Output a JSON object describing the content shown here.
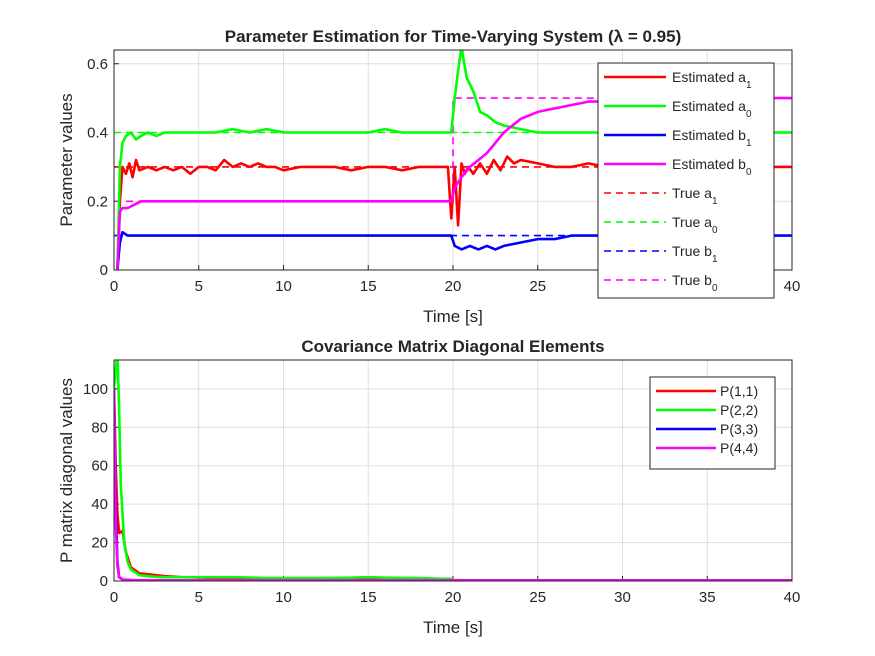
{
  "chart_data": [
    {
      "type": "line",
      "title": "Parameter Estimation for Time-Varying System (λ = 0.95)",
      "xlabel": "Time [s]",
      "ylabel": "Parameter values",
      "xlim": [
        0,
        40
      ],
      "ylim": [
        0,
        0.64
      ],
      "xticks": [
        "0",
        "5",
        "10",
        "15",
        "20",
        "25",
        "30",
        "35",
        "40"
      ],
      "yticks": [
        "0",
        "0.2",
        "0.4",
        "0.6"
      ],
      "grid": true,
      "legend": "top-right",
      "series": [
        {
          "name": "Estimated a",
          "sub": "1",
          "color": "#ff0000",
          "style": "solid",
          "x": [
            0.2,
            0.35,
            0.5,
            0.7,
            0.9,
            1.1,
            1.3,
            1.5,
            2,
            2.5,
            3,
            3.5,
            4,
            4.5,
            5,
            5.5,
            6,
            6.5,
            7,
            7.5,
            8,
            8.5,
            9,
            9.5,
            10,
            11,
            12,
            13,
            14,
            15,
            16,
            17,
            18,
            19,
            19.7,
            19.9,
            20.1,
            20.3,
            20.5,
            20.7,
            20.9,
            21.2,
            21.6,
            22,
            22.4,
            22.8,
            23.2,
            23.6,
            24,
            25,
            26,
            27,
            28,
            29,
            30,
            31,
            32,
            33,
            34,
            35,
            36,
            37,
            38,
            39,
            40
          ],
          "y": [
            0,
            0.2,
            0.3,
            0.28,
            0.31,
            0.27,
            0.32,
            0.29,
            0.3,
            0.29,
            0.3,
            0.29,
            0.3,
            0.28,
            0.3,
            0.3,
            0.29,
            0.32,
            0.3,
            0.31,
            0.3,
            0.31,
            0.3,
            0.3,
            0.29,
            0.3,
            0.3,
            0.3,
            0.29,
            0.3,
            0.3,
            0.29,
            0.3,
            0.3,
            0.3,
            0.15,
            0.3,
            0.13,
            0.31,
            0.28,
            0.3,
            0.28,
            0.31,
            0.28,
            0.32,
            0.29,
            0.33,
            0.31,
            0.32,
            0.31,
            0.3,
            0.3,
            0.31,
            0.3,
            0.3,
            0.3,
            0.3,
            0.3,
            0.3,
            0.3,
            0.3,
            0.3,
            0.3,
            0.3,
            0.3
          ]
        },
        {
          "name": "Estimated a",
          "sub": "0",
          "color": "#00ff00",
          "style": "solid",
          "x": [
            0.2,
            0.35,
            0.5,
            0.7,
            1,
            1.3,
            1.6,
            2,
            2.5,
            3,
            4,
            5,
            6,
            7,
            8,
            9,
            10,
            11,
            12,
            13,
            14,
            15,
            16,
            17,
            18,
            19,
            19.9,
            20.1,
            20.3,
            20.5,
            20.8,
            21.2,
            21.6,
            22,
            22.5,
            23,
            24,
            25,
            26,
            27,
            28,
            29,
            30,
            31,
            32,
            33,
            34,
            35,
            36,
            37,
            38,
            39,
            40
          ],
          "y": [
            0,
            0.3,
            0.37,
            0.39,
            0.4,
            0.38,
            0.39,
            0.4,
            0.39,
            0.4,
            0.4,
            0.4,
            0.4,
            0.41,
            0.4,
            0.41,
            0.4,
            0.4,
            0.4,
            0.4,
            0.4,
            0.4,
            0.41,
            0.4,
            0.4,
            0.4,
            0.4,
            0.5,
            0.58,
            0.65,
            0.56,
            0.52,
            0.46,
            0.45,
            0.43,
            0.42,
            0.41,
            0.4,
            0.4,
            0.4,
            0.4,
            0.4,
            0.4,
            0.4,
            0.4,
            0.4,
            0.4,
            0.4,
            0.4,
            0.4,
            0.4,
            0.4,
            0.4
          ]
        },
        {
          "name": "Estimated b",
          "sub": "1",
          "color": "#0000ff",
          "style": "solid",
          "x": [
            0.2,
            0.35,
            0.5,
            0.8,
            1,
            2,
            3,
            4,
            5,
            6,
            7,
            8,
            9,
            10,
            11,
            12,
            13,
            14,
            15,
            16,
            17,
            18,
            19,
            19.9,
            20.1,
            20.5,
            21,
            21.5,
            22,
            22.5,
            23,
            24,
            25,
            26,
            27,
            28,
            29,
            30,
            31,
            32,
            33,
            34,
            35,
            36,
            37,
            38,
            39,
            40
          ],
          "y": [
            0,
            0.08,
            0.11,
            0.1,
            0.1,
            0.1,
            0.1,
            0.1,
            0.1,
            0.1,
            0.1,
            0.1,
            0.1,
            0.1,
            0.1,
            0.1,
            0.1,
            0.1,
            0.1,
            0.1,
            0.1,
            0.1,
            0.1,
            0.1,
            0.07,
            0.06,
            0.07,
            0.06,
            0.07,
            0.06,
            0.07,
            0.08,
            0.09,
            0.09,
            0.1,
            0.1,
            0.1,
            0.1,
            0.1,
            0.1,
            0.1,
            0.1,
            0.1,
            0.1,
            0.1,
            0.1,
            0.1,
            0.1
          ]
        },
        {
          "name": "Estimated b",
          "sub": "0",
          "color": "#ff00ff",
          "style": "solid",
          "x": [
            0.2,
            0.35,
            0.5,
            0.8,
            1.2,
            1.6,
            2,
            3,
            4,
            5,
            6,
            7,
            8,
            9,
            10,
            11,
            12,
            13,
            14,
            15,
            16,
            17,
            18,
            19,
            19.9,
            20.1,
            20.5,
            21,
            21.5,
            22,
            22.5,
            23,
            23.5,
            24,
            25,
            26,
            27,
            28,
            29,
            30,
            31,
            32,
            33,
            34,
            35,
            36,
            37,
            38,
            39,
            40
          ],
          "y": [
            0,
            0.17,
            0.18,
            0.18,
            0.19,
            0.2,
            0.2,
            0.2,
            0.2,
            0.2,
            0.2,
            0.2,
            0.2,
            0.2,
            0.2,
            0.2,
            0.2,
            0.2,
            0.2,
            0.2,
            0.2,
            0.2,
            0.2,
            0.2,
            0.2,
            0.24,
            0.27,
            0.3,
            0.32,
            0.34,
            0.37,
            0.4,
            0.42,
            0.44,
            0.46,
            0.47,
            0.48,
            0.49,
            0.49,
            0.5,
            0.5,
            0.5,
            0.5,
            0.5,
            0.5,
            0.5,
            0.5,
            0.5,
            0.5,
            0.5
          ]
        },
        {
          "name": "True a",
          "sub": "1",
          "color": "#ff0000",
          "style": "dashed",
          "x": [
            0,
            40
          ],
          "y": [
            0.3,
            0.3
          ]
        },
        {
          "name": "True a",
          "sub": "0",
          "color": "#00ff00",
          "style": "dashed",
          "x": [
            0,
            40
          ],
          "y": [
            0.4,
            0.4
          ]
        },
        {
          "name": "True b",
          "sub": "1",
          "color": "#0000ff",
          "style": "dashed",
          "x": [
            0,
            40
          ],
          "y": [
            0.1,
            0.1
          ]
        },
        {
          "name": "True b",
          "sub": "0",
          "color": "#ff00ff",
          "style": "dashed",
          "x": [
            0,
            20,
            20,
            40
          ],
          "y": [
            0.2,
            0.2,
            0.5,
            0.5
          ]
        }
      ]
    },
    {
      "type": "line",
      "title": "Covariance Matrix Diagonal Elements",
      "xlabel": "Time [s]",
      "ylabel": "P matrix diagonal values",
      "xlim": [
        0,
        40
      ],
      "ylim": [
        0,
        115
      ],
      "xticks": [
        "0",
        "5",
        "10",
        "15",
        "20",
        "25",
        "30",
        "35",
        "40"
      ],
      "yticks": [
        "0",
        "20",
        "40",
        "60",
        "80",
        "100"
      ],
      "grid": true,
      "legend": "top-right",
      "series": [
        {
          "name": "P(1,1)",
          "color": "#ff0000",
          "style": "solid",
          "x": [
            0,
            0.1,
            0.2,
            0.3,
            0.5,
            0.7,
            1,
            1.5,
            2,
            2.5,
            3,
            4,
            5,
            6,
            7,
            8,
            10,
            12,
            14,
            16,
            18,
            19.9,
            20,
            21,
            25,
            30,
            35,
            40
          ],
          "y": [
            100,
            60,
            35,
            25,
            26,
            15,
            7,
            4,
            3.5,
            3,
            2.5,
            2,
            1.8,
            1.6,
            1.5,
            1.5,
            1.3,
            1.2,
            1.2,
            1.2,
            1.1,
            1,
            0.5,
            0.3,
            0.3,
            0.3,
            0.3,
            0.3
          ]
        },
        {
          "name": "P(2,2)",
          "color": "#00ff00",
          "style": "solid",
          "x": [
            0,
            0.1,
            0.2,
            0.3,
            0.4,
            0.6,
            0.8,
            1,
            1.5,
            2,
            2.5,
            3,
            4,
            5,
            6,
            7,
            8,
            9,
            10,
            12,
            14,
            15,
            16,
            18,
            19.9,
            20,
            21,
            25,
            30,
            35,
            40
          ],
          "y": [
            100,
            110,
            118,
            90,
            50,
            20,
            10,
            6,
            3,
            2.5,
            2.2,
            2,
            2,
            2,
            2,
            2,
            1.8,
            1.5,
            1.5,
            1.5,
            1.7,
            2,
            1.7,
            1.5,
            1,
            0.4,
            0.3,
            0.3,
            0.3,
            0.3,
            0.3
          ]
        },
        {
          "name": "P(3,3)",
          "color": "#0000ff",
          "style": "solid",
          "x": [
            0,
            0.1,
            0.2,
            0.3,
            0.5,
            1,
            2,
            5,
            10,
            20,
            30,
            40
          ],
          "y": [
            100,
            40,
            10,
            2,
            0.8,
            0.4,
            0.3,
            0.2,
            0.2,
            0.2,
            0.2,
            0.2
          ]
        },
        {
          "name": "P(4,4)",
          "color": "#ff00ff",
          "style": "solid",
          "x": [
            0,
            0.1,
            0.2,
            0.3,
            0.5,
            1,
            2,
            5,
            10,
            20,
            30,
            40
          ],
          "y": [
            100,
            30,
            8,
            2,
            0.8,
            0.5,
            0.4,
            0.3,
            0.3,
            0.3,
            0.3,
            0.3
          ]
        }
      ]
    }
  ]
}
